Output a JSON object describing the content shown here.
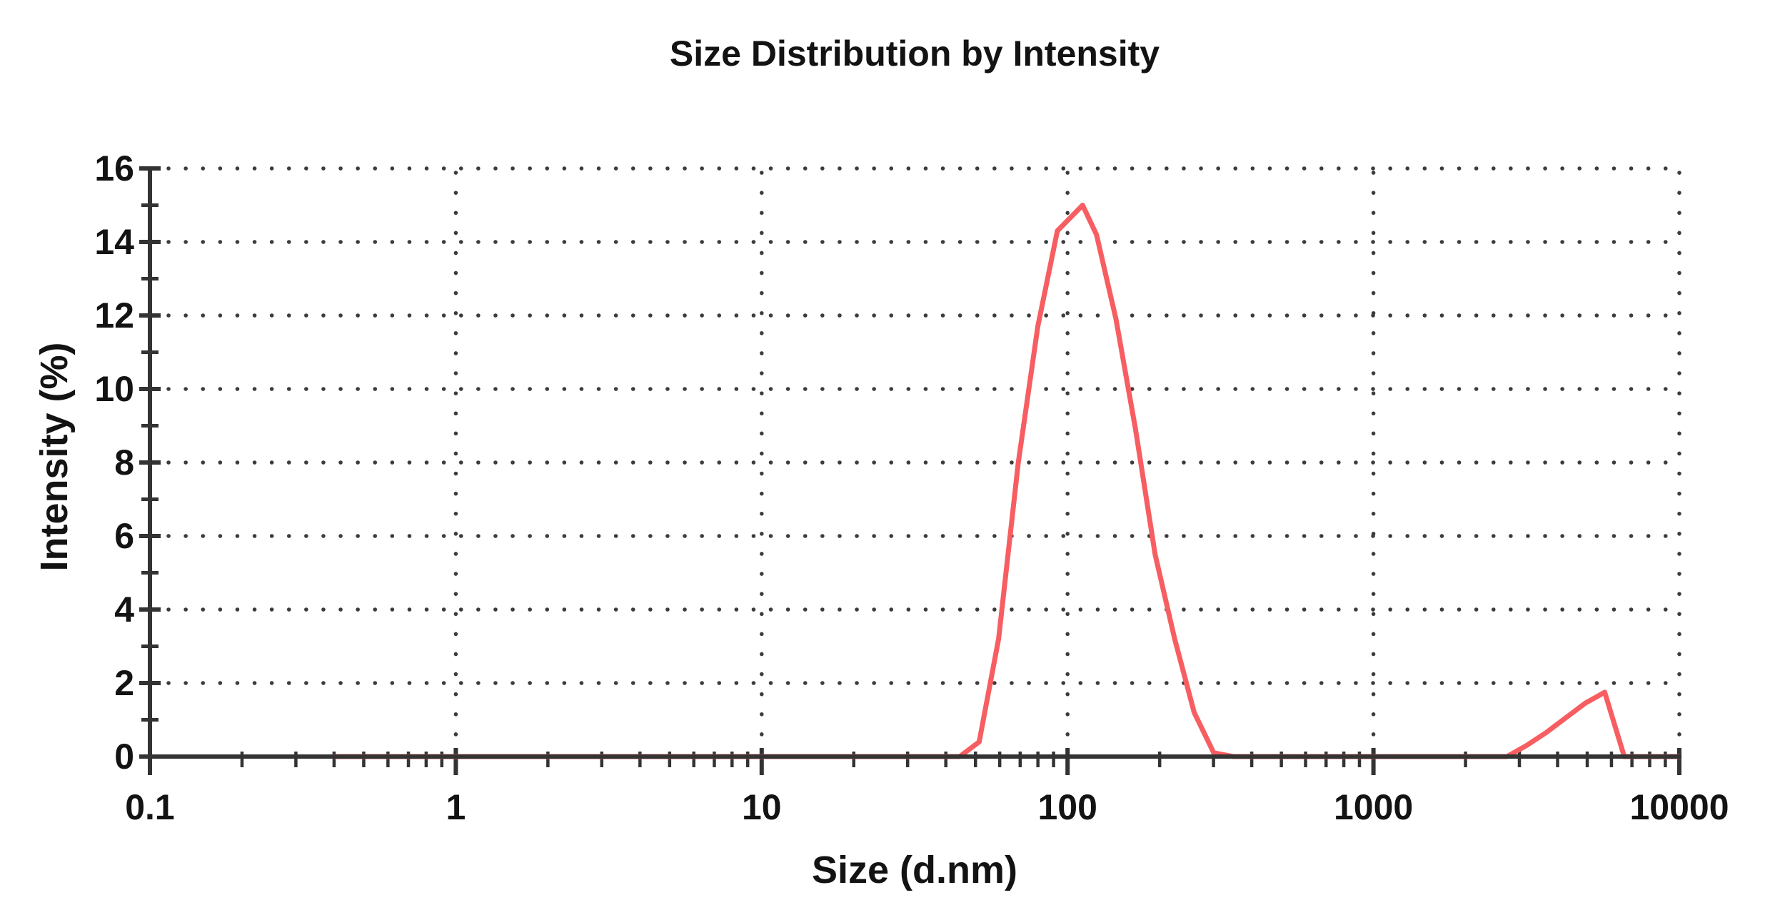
{
  "chart_data": {
    "type": "line",
    "title": "Size Distribution by Intensity",
    "xlabel": "Size (d.nm)",
    "ylabel": "Intensity (%)",
    "x_scale": "log",
    "xlim": [
      0.1,
      10000
    ],
    "ylim": [
      0,
      16
    ],
    "x_ticks": [
      0.1,
      1,
      10,
      100,
      1000,
      10000
    ],
    "x_tick_labels": [
      "0.1",
      "1",
      "10",
      "100",
      "1000",
      "10000"
    ],
    "y_ticks": [
      0,
      2,
      4,
      6,
      8,
      10,
      12,
      14,
      16
    ],
    "y_minor_ticks": [
      1,
      3,
      5,
      7,
      9,
      11,
      13,
      15
    ],
    "grid": "dotted",
    "legend": "none",
    "colors": {
      "line": "#f75e61",
      "axis": "#333333",
      "grid": "#3c3c3c",
      "text": "#131313"
    },
    "series": [
      {
        "name": "Intensity",
        "points": [
          [
            0.4,
            0
          ],
          [
            44.4,
            0
          ],
          [
            51.4,
            0.4
          ],
          [
            59.5,
            3.2
          ],
          [
            69,
            8.0
          ],
          [
            79.9,
            11.7
          ],
          [
            92.6,
            14.3
          ],
          [
            112,
            15.0
          ],
          [
            124.3,
            14.2
          ],
          [
            144,
            11.9
          ],
          [
            166.8,
            8.9
          ],
          [
            193.3,
            5.5
          ],
          [
            223.9,
            3.2
          ],
          [
            259.4,
            1.2
          ],
          [
            300.5,
            0.1
          ],
          [
            348.2,
            0
          ],
          [
            2732,
            0
          ],
          [
            3165,
            0.3
          ],
          [
            3667,
            0.65
          ],
          [
            4248,
            1.05
          ],
          [
            4922,
            1.45
          ],
          [
            5702,
            1.75
          ],
          [
            6606,
            0
          ],
          [
            10000,
            0
          ]
        ]
      }
    ],
    "peaks_note": "main peak ~15% at ~110 d.nm; secondary peak ~1.75% at ~5700 d.nm"
  }
}
